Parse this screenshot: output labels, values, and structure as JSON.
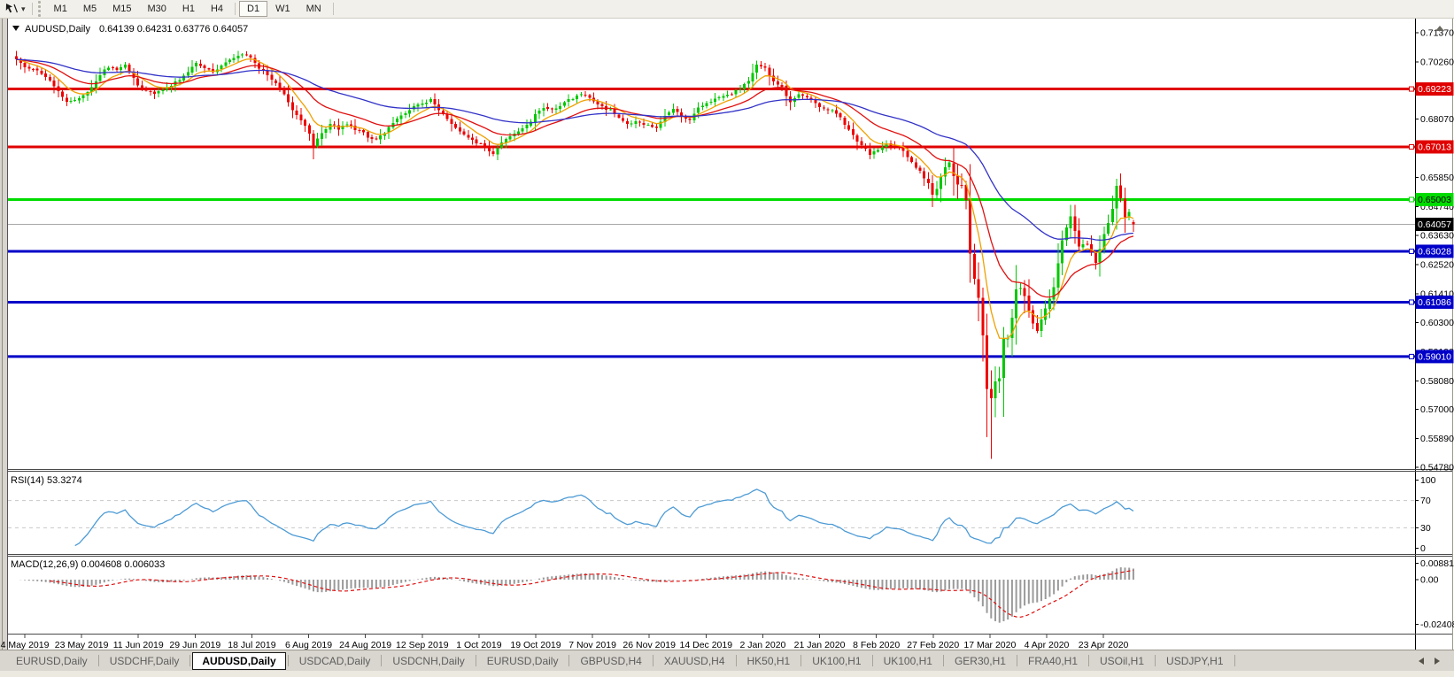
{
  "toolbar": {
    "timeframes": [
      "M1",
      "M5",
      "M15",
      "M30",
      "H1",
      "H4",
      "D1",
      "W1",
      "MN"
    ],
    "active": "D1"
  },
  "chart_data": {
    "type": "candlestick",
    "symbol": "AUDUSD,Daily",
    "ohlc_line": "0.64139 0.64231 0.63776 0.64057",
    "last_candle": {
      "open": 0.64139,
      "high": 0.64231,
      "low": 0.63776,
      "close": 0.64057
    },
    "current_price_label": "0.64057",
    "y_axis_ticks": [
      "0.71370",
      "0.70260",
      "0.69150",
      "0.68070",
      "0.66960",
      "0.65850",
      "0.64740",
      "0.63630",
      "0.62520",
      "0.61410",
      "0.60300",
      "0.59190",
      "0.58080",
      "0.57000",
      "0.55890",
      "0.54780"
    ],
    "x_labels": [
      "4 May 2019",
      "23 May 2019",
      "11 Jun 2019",
      "29 Jun 2019",
      "18 Jul 2019",
      "6 Aug 2019",
      "24 Aug 2019",
      "12 Sep 2019",
      "1 Oct 2019",
      "19 Oct 2019",
      "7 Nov 2019",
      "26 Nov 2019",
      "14 Dec 2019",
      "2 Jan 2020",
      "21 Jan 2020",
      "8 Feb 2020",
      "27 Feb 2020",
      "17 Mar 2020",
      "4 Apr 2020",
      "23 Apr 2020"
    ],
    "levels": [
      {
        "label": "0.69223",
        "value": 0.69223,
        "color": "#E00000",
        "text": "#FFFFFF"
      },
      {
        "label": "0.67013",
        "value": 0.67013,
        "color": "#E00000",
        "text": "#FFFFFF"
      },
      {
        "label": "0.65003",
        "value": 0.65003,
        "color": "#00DC00",
        "text": "#000000"
      },
      {
        "label": "0.63028",
        "value": 0.63028,
        "color": "#0000C8",
        "text": "#FFFFFF"
      },
      {
        "label": "0.61086",
        "value": 0.61086,
        "color": "#0000C8",
        "text": "#FFFFFF"
      },
      {
        "label": "0.59010",
        "value": 0.5901,
        "color": "#0000C8",
        "text": "#FFFFFF"
      }
    ],
    "candle_count": 268,
    "colors": {
      "up": "#00C800",
      "down": "#EE0000",
      "current_line": "#A8A8A8"
    },
    "close_anchors": [
      [
        0,
        0.7035
      ],
      [
        2,
        0.7005
      ],
      [
        5,
        0.699
      ],
      [
        8,
        0.6955
      ],
      [
        12,
        0.687
      ],
      [
        14,
        0.6885
      ],
      [
        16,
        0.6895
      ],
      [
        18,
        0.693
      ],
      [
        20,
        0.698
      ],
      [
        22,
        0.7008
      ],
      [
        24,
        0.6995
      ],
      [
        26,
        0.7012
      ],
      [
        29,
        0.6938
      ],
      [
        31,
        0.692
      ],
      [
        33,
        0.69
      ],
      [
        35,
        0.692
      ],
      [
        37,
        0.6938
      ],
      [
        39,
        0.696
      ],
      [
        41,
        0.6992
      ],
      [
        43,
        0.7022
      ],
      [
        45,
        0.7
      ],
      [
        47,
        0.6985
      ],
      [
        49,
        0.7012
      ],
      [
        51,
        0.7038
      ],
      [
        53,
        0.7048
      ],
      [
        55,
        0.7058
      ],
      [
        56,
        0.704
      ],
      [
        58,
        0.7002
      ],
      [
        60,
        0.6975
      ],
      [
        62,
        0.694
      ],
      [
        64,
        0.69
      ],
      [
        66,
        0.6842
      ],
      [
        68,
        0.68
      ],
      [
        70,
        0.6755
      ],
      [
        71,
        0.67
      ],
      [
        73,
        0.6758
      ],
      [
        75,
        0.6788
      ],
      [
        77,
        0.6772
      ],
      [
        79,
        0.6788
      ],
      [
        81,
        0.6768
      ],
      [
        83,
        0.6755
      ],
      [
        85,
        0.6728
      ],
      [
        87,
        0.6742
      ],
      [
        89,
        0.6772
      ],
      [
        91,
        0.6806
      ],
      [
        93,
        0.6832
      ],
      [
        95,
        0.6856
      ],
      [
        97,
        0.6868
      ],
      [
        99,
        0.688
      ],
      [
        101,
        0.6842
      ],
      [
        103,
        0.6806
      ],
      [
        105,
        0.6772
      ],
      [
        107,
        0.6748
      ],
      [
        109,
        0.673
      ],
      [
        110,
        0.672
      ],
      [
        112,
        0.67
      ],
      [
        114,
        0.6678
      ],
      [
        116,
        0.6722
      ],
      [
        118,
        0.6742
      ],
      [
        120,
        0.6758
      ],
      [
        122,
        0.6782
      ],
      [
        124,
        0.6822
      ],
      [
        126,
        0.685
      ],
      [
        128,
        0.684
      ],
      [
        130,
        0.6856
      ],
      [
        132,
        0.688
      ],
      [
        134,
        0.6896
      ],
      [
        136,
        0.6902
      ],
      [
        138,
        0.6872
      ],
      [
        140,
        0.6856
      ],
      [
        142,
        0.684
      ],
      [
        144,
        0.6816
      ],
      [
        146,
        0.679
      ],
      [
        148,
        0.68
      ],
      [
        150,
        0.679
      ],
      [
        151,
        0.6782
      ],
      [
        153,
        0.6772
      ],
      [
        155,
        0.682
      ],
      [
        157,
        0.6842
      ],
      [
        159,
        0.6822
      ],
      [
        161,
        0.6806
      ],
      [
        163,
        0.685
      ],
      [
        165,
        0.6868
      ],
      [
        167,
        0.6886
      ],
      [
        169,
        0.6896
      ],
      [
        171,
        0.6902
      ],
      [
        173,
        0.6922
      ],
      [
        175,
        0.6952
      ],
      [
        177,
        0.702
      ],
      [
        179,
        0.7
      ],
      [
        181,
        0.6952
      ],
      [
        183,
        0.693
      ],
      [
        185,
        0.687
      ],
      [
        187,
        0.69
      ],
      [
        189,
        0.6894
      ],
      [
        191,
        0.687
      ],
      [
        193,
        0.6846
      ],
      [
        195,
        0.684
      ],
      [
        197,
        0.681
      ],
      [
        199,
        0.6765
      ],
      [
        201,
        0.672
      ],
      [
        203,
        0.6695
      ],
      [
        204,
        0.6672
      ],
      [
        206,
        0.6692
      ],
      [
        208,
        0.6718
      ],
      [
        210,
        0.67
      ],
      [
        212,
        0.669
      ],
      [
        214,
        0.664
      ],
      [
        216,
        0.661
      ],
      [
        218,
        0.656
      ],
      [
        219,
        0.652
      ],
      [
        220,
        0.654
      ],
      [
        221,
        0.6593
      ],
      [
        222,
        0.6626
      ],
      [
        223,
        0.664
      ],
      [
        224,
        0.658
      ],
      [
        226,
        0.656
      ],
      [
        227,
        0.649
      ],
      [
        228,
        0.629
      ],
      [
        229,
        0.619
      ],
      [
        230,
        0.612
      ],
      [
        231,
        0.599
      ],
      [
        232,
        0.577
      ],
      [
        233,
        0.574
      ],
      [
        234,
        0.58
      ],
      [
        235,
        0.583
      ],
      [
        236,
        0.597
      ],
      [
        237,
        0.596
      ],
      [
        238,
        0.606
      ],
      [
        239,
        0.617
      ],
      [
        240,
        0.616
      ],
      [
        241,
        0.614
      ],
      [
        242,
        0.607
      ],
      [
        244,
        0.6
      ],
      [
        246,
        0.608
      ],
      [
        248,
        0.617
      ],
      [
        250,
        0.634
      ],
      [
        252,
        0.644
      ],
      [
        254,
        0.632
      ],
      [
        256,
        0.633
      ],
      [
        258,
        0.626
      ],
      [
        260,
        0.637
      ],
      [
        262,
        0.646
      ],
      [
        263,
        0.6552
      ],
      [
        264,
        0.65
      ],
      [
        265,
        0.643
      ],
      [
        266,
        0.645
      ],
      [
        267,
        0.64057
      ]
    ],
    "crash_low": {
      "index": 233,
      "price": 0.551
    },
    "moving_averages": [
      {
        "period": 8,
        "color": "#F0A000"
      },
      {
        "period": 21,
        "color": "#E01010"
      },
      {
        "period": 55,
        "color": "#3232C8"
      }
    ],
    "rsi": {
      "label": "RSI(14) 53.3274",
      "period": 14,
      "guides": [
        70,
        30
      ],
      "axis_labels": [
        "100",
        "70",
        "30",
        "0"
      ],
      "color": "#4D9BD5"
    },
    "macd": {
      "label": "MACD(12,26,9) 0.004608 0.006033",
      "fast": 12,
      "slow": 26,
      "signal": 9,
      "axis_labels": [
        "0.008815",
        "0.00",
        "-0.024082"
      ],
      "axis_values": [
        0.008815,
        0.0,
        -0.024082
      ],
      "histogram_color": "#9A9A9A",
      "signal_color": "#E01010"
    }
  },
  "tabs": {
    "items": [
      "EURUSD,Daily",
      "USDCHF,Daily",
      "AUDUSD,Daily",
      "USDCAD,Daily",
      "USDCNH,Daily",
      "EURUSD,Daily",
      "GBPUSD,H4",
      "XAUUSD,H4",
      "HK50,H1",
      "UK100,H1",
      "UK100,H1",
      "GER30,H1",
      "FRA40,H1",
      "USOil,H1",
      "USDJPY,H1"
    ],
    "active_index": 2
  }
}
